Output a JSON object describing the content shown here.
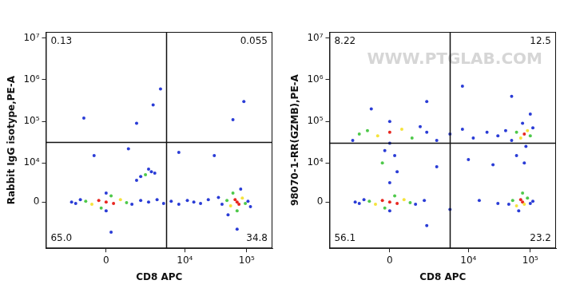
{
  "chart_data": [
    {
      "type": "scatter",
      "x_label": "CD8 APC",
      "y_label": "Rabbit IgG isotype,PE-A",
      "xlim": [
        -5000,
        260000
      ],
      "ylim": [
        -15000,
        14000000
      ],
      "xticks": [
        0,
        {
          "value": 10000,
          "label": "10⁴"
        },
        {
          "value": 100000,
          "label": "10⁵"
        }
      ],
      "yticks": [
        0,
        {
          "value": 10000,
          "label": "10⁴"
        },
        {
          "value": 100000,
          "label": "10⁵"
        },
        {
          "value": 1000000,
          "label": "10⁶"
        },
        {
          "value": 10000000,
          "label": "10⁷"
        }
      ],
      "grid": false,
      "gates": {
        "x": 5000,
        "y": 32000
      },
      "quadrants": [
        {
          "position": "UL",
          "value": 0.13,
          "label": "0.13"
        },
        {
          "position": "UR",
          "value": 0.055,
          "label": "0.055"
        },
        {
          "position": "LL",
          "value": 65,
          "label": "65.0"
        },
        {
          "position": "LR",
          "value": 34.8,
          "label": "34.8"
        }
      ],
      "x": [
        0,
        -300,
        300,
        -600,
        600,
        -900,
        900,
        -1200,
        1200,
        -1500,
        200,
        -200,
        0,
        0,
        1800,
        -1800,
        2500,
        3500,
        4500,
        6000,
        8000,
        11000,
        14000,
        18000,
        24000,
        2200,
        2800,
        1800,
        3200,
        2500,
        1500,
        70000,
        65000,
        75000,
        55000,
        85000,
        48000,
        95000,
        40000,
        105000,
        60000,
        70000,
        80000,
        50000,
        35000,
        115000,
        3000,
        -1000,
        1500,
        4000,
        -500,
        1000,
        60000,
        90000,
        30000,
        8000,
        200,
        70000
      ],
      "y": [
        0,
        200,
        -200,
        -300,
        300,
        100,
        -100,
        300,
        -300,
        -200,
        800,
        -800,
        1200,
        -1200,
        200,
        0,
        0,
        300,
        -200,
        100,
        -300,
        200,
        0,
        -200,
        300,
        5000,
        6000,
        4500,
        5500,
        7000,
        3500,
        0,
        300,
        -300,
        -500,
        500,
        200,
        -200,
        -300,
        100,
        1200,
        -1200,
        1800,
        -1800,
        600,
        -600,
        250000,
        120000,
        90000,
        600000,
        15000,
        22000,
        110000,
        300000,
        15000,
        18000,
        -6000,
        -5000
      ],
      "colors": [
        "#e8261f",
        "#e8261f",
        "#e8261f",
        "#f5e33b",
        "#f5e33b",
        "#4ec94a",
        "#4ec94a",
        "#2a3cd6",
        "#2a3cd6",
        "#2a3cd6",
        "#4ec94a",
        "#4ec94a",
        "#2a3cd6",
        "#2a3cd6",
        "#2a3cd6",
        "#2a3cd6",
        "#2a3cd6",
        "#2a3cd6",
        "#2a3cd6",
        "#2a3cd6",
        "#2a3cd6",
        "#2a3cd6",
        "#2a3cd6",
        "#2a3cd6",
        "#2a3cd6",
        "#4ec94a",
        "#2a3cd6",
        "#2a3cd6",
        "#2a3cd6",
        "#2a3cd6",
        "#2a3cd6",
        "#e8261f",
        "#e8261f",
        "#e8261f",
        "#f5e33b",
        "#f5e33b",
        "#4ec94a",
        "#4ec94a",
        "#2a3cd6",
        "#2a3cd6",
        "#4ec94a",
        "#4ec94a",
        "#2a3cd6",
        "#2a3cd6",
        "#2a3cd6",
        "#2a3cd6",
        "#2a3cd6",
        "#2a3cd6",
        "#2a3cd6",
        "#2a3cd6",
        "#2a3cd6",
        "#2a3cd6",
        "#2a3cd6",
        "#2a3cd6",
        "#2a3cd6",
        "#2a3cd6",
        "#2a3cd6",
        "#2a3cd6"
      ]
    },
    {
      "type": "scatter",
      "x_label": "CD8 APC",
      "y_label": "98070-1-RR(GZMB),PE-A",
      "watermark": "WWW.PTGLAB.COM",
      "xlim": [
        -5000,
        260000
      ],
      "ylim": [
        -15000,
        14000000
      ],
      "xticks": [
        0,
        {
          "value": 10000,
          "label": "10⁴"
        },
        {
          "value": 100000,
          "label": "10⁵"
        }
      ],
      "yticks": [
        0,
        {
          "value": 10000,
          "label": "10⁴"
        },
        {
          "value": 100000,
          "label": "10⁵"
        },
        {
          "value": 1000000,
          "label": "10⁶"
        },
        {
          "value": 10000000,
          "label": "10⁷"
        }
      ],
      "grid": false,
      "gates": {
        "x": 5000,
        "y": 30000
      },
      "quadrants": [
        {
          "position": "UL",
          "value": 8.22,
          "label": "8.22"
        },
        {
          "position": "UR",
          "value": 12.5,
          "label": "12.5"
        },
        {
          "position": "LL",
          "value": 56.1,
          "label": "56.1"
        },
        {
          "position": "LR",
          "value": 23.2,
          "label": "23.2"
        }
      ],
      "x": [
        0,
        -300,
        300,
        -600,
        600,
        -900,
        900,
        -1200,
        1200,
        -1500,
        200,
        -200,
        0,
        1800,
        -1800,
        75000,
        70000,
        80000,
        60000,
        90000,
        52000,
        100000,
        45000,
        110000,
        75000,
        65000,
        0,
        -500,
        500,
        -1000,
        1000,
        -1500,
        1500,
        0,
        0,
        -2000,
        2000,
        0,
        300,
        -300,
        200,
        -200,
        80000,
        70000,
        90000,
        60000,
        100000,
        50000,
        110000,
        85000,
        75000,
        40000,
        30000,
        20000,
        12000,
        8000,
        5000,
        3000,
        3000,
        10000,
        25000,
        60000,
        80000,
        2000,
        5000,
        15000,
        30000,
        2000,
        50000,
        -800,
        100000,
        8000
      ],
      "y": [
        0,
        200,
        -200,
        -300,
        300,
        100,
        -100,
        300,
        -300,
        -200,
        800,
        -800,
        -1200,
        200,
        0,
        0,
        300,
        -300,
        -500,
        500,
        200,
        -200,
        -300,
        100,
        1200,
        -1200,
        55000,
        45000,
        65000,
        60000,
        40000,
        50000,
        75000,
        100000,
        30000,
        35000,
        55000,
        3000,
        6000,
        10000,
        15000,
        20000,
        50000,
        40000,
        60000,
        55000,
        45000,
        35000,
        70000,
        25000,
        90000,
        60000,
        45000,
        55000,
        40000,
        65000,
        50000,
        35000,
        8000,
        12000,
        9000,
        15000,
        10000,
        -4000,
        -1000,
        200,
        -200,
        300000,
        400000,
        200000,
        150000,
        700000
      ],
      "colors": [
        "#e8261f",
        "#e8261f",
        "#e8261f",
        "#f5e33b",
        "#f5e33b",
        "#4ec94a",
        "#4ec94a",
        "#2a3cd6",
        "#2a3cd6",
        "#2a3cd6",
        "#4ec94a",
        "#4ec94a",
        "#2a3cd6",
        "#2a3cd6",
        "#2a3cd6",
        "#e8261f",
        "#e8261f",
        "#f5e33b",
        "#f5e33b",
        "#4ec94a",
        "#4ec94a",
        "#2a3cd6",
        "#2a3cd6",
        "#2a3cd6",
        "#4ec94a",
        "#2a3cd6",
        "#e8261f",
        "#f5e33b",
        "#f5e33b",
        "#4ec94a",
        "#4ec94a",
        "#4ec94a",
        "#2a3cd6",
        "#2a3cd6",
        "#2a3cd6",
        "#2a3cd6",
        "#2a3cd6",
        "#2a3cd6",
        "#2a3cd6",
        "#4ec94a",
        "#2a3cd6",
        "#2a3cd6",
        "#e8261f",
        "#f5e33b",
        "#f5e33b",
        "#4ec94a",
        "#4ec94a",
        "#2a3cd6",
        "#2a3cd6",
        "#2a3cd6",
        "#2a3cd6",
        "#2a3cd6",
        "#2a3cd6",
        "#2a3cd6",
        "#2a3cd6",
        "#2a3cd6",
        "#2a3cd6",
        "#2a3cd6",
        "#2a3cd6",
        "#2a3cd6",
        "#2a3cd6",
        "#2a3cd6",
        "#2a3cd6",
        "#2a3cd6",
        "#2a3cd6",
        "#2a3cd6",
        "#2a3cd6",
        "#2a3cd6",
        "#2a3cd6",
        "#2a3cd6",
        "#2a3cd6",
        "#2a3cd6"
      ]
    }
  ]
}
